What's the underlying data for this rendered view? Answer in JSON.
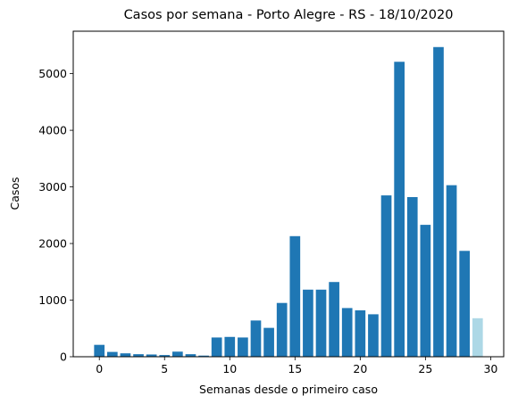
{
  "chart_data": {
    "type": "bar",
    "title": "Casos por semana - Porto Alegre - RS - 18/10/2020",
    "xlabel": "Semanas desde o primeiro caso",
    "ylabel": "Casos",
    "x": [
      0,
      1,
      2,
      3,
      4,
      5,
      6,
      7,
      8,
      9,
      10,
      11,
      12,
      13,
      14,
      15,
      16,
      17,
      18,
      19,
      20,
      21,
      22,
      23,
      24,
      25,
      26,
      27,
      28,
      29
    ],
    "values": [
      210,
      85,
      60,
      45,
      40,
      30,
      90,
      45,
      20,
      340,
      350,
      340,
      640,
      510,
      950,
      2130,
      1185,
      1185,
      1320,
      860,
      820,
      750,
      2850,
      5210,
      2820,
      2330,
      5470,
      3030,
      1870,
      680
    ],
    "partial_last_week": true,
    "colors": {
      "bar": "#1f77b4",
      "partial_bar": "#add8e6"
    },
    "xlim": [
      -2,
      31
    ],
    "ylim": [
      0,
      5750
    ],
    "xticks": [
      "0",
      "5",
      "10",
      "15",
      "20",
      "25",
      "30"
    ],
    "yticks": [
      "0",
      "1000",
      "2000",
      "3000",
      "4000",
      "5000"
    ],
    "grid": false,
    "legend": "none"
  }
}
